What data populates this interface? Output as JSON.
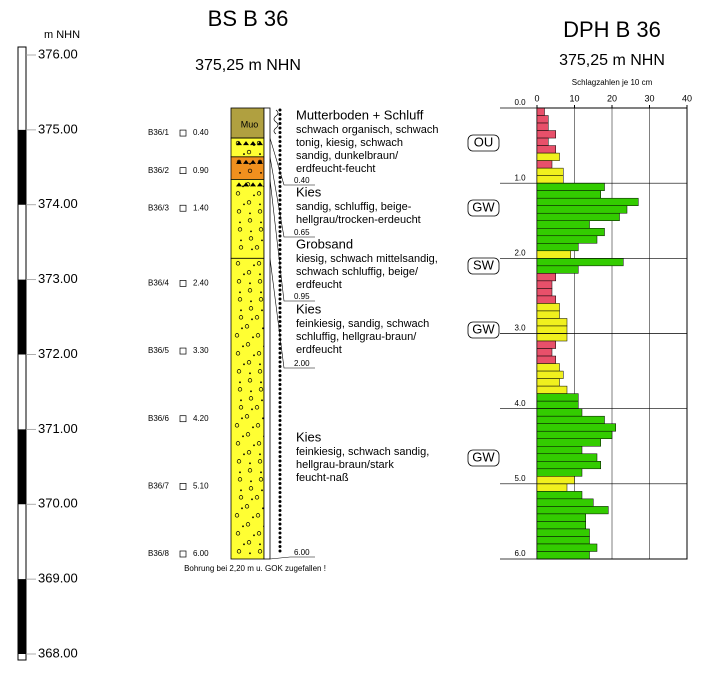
{
  "elevation_axis": {
    "label": "m NHN",
    "ylim": [
      368,
      376
    ],
    "yticks": [
      {
        "value": 376,
        "label": "376.00"
      },
      {
        "value": 375,
        "label": "375.00"
      },
      {
        "value": 374,
        "label": "374.00"
      },
      {
        "value": 373,
        "label": "373.00"
      },
      {
        "value": 372,
        "label": "372.00"
      },
      {
        "value": 371,
        "label": "371.00"
      },
      {
        "value": 370,
        "label": "370.00"
      },
      {
        "value": 369,
        "label": "369.00"
      },
      {
        "value": 368,
        "label": "368.00"
      }
    ]
  },
  "boring": {
    "title": "BS B 36",
    "subtitle": "375,25 m NHN",
    "note": "Bohrung bei 2,20 m u. GOK zugefallen !",
    "layers": [
      {
        "name": "Mutterboden + Schluff",
        "symbol": "Muo",
        "description": [
          "schwach organisch, schwach",
          "tonig, kiesig, schwach",
          "sandig, dunkelbraun/",
          "erdfeucht-feucht"
        ],
        "group": "OU",
        "color": "#b0a040",
        "bottom": {
          "value": 0.4,
          "label": "0.40"
        }
      },
      {
        "name": "Kies",
        "description": [
          "sandig, schluffig, beige-",
          "hellgrau/trocken-erdeucht"
        ],
        "group": "GW",
        "color": "#ffff33",
        "bottom": {
          "value": 0.65,
          "label": "0.65"
        }
      },
      {
        "name": "Grobsand",
        "description": [
          "kiesig, schwach mittelsandig,",
          "schwach schluffig, beige/",
          "erdfeucht"
        ],
        "group": "SW",
        "color": "#f0901e",
        "bottom": {
          "value": 0.95,
          "label": "0.95"
        }
      },
      {
        "name": "Kies",
        "description": [
          "feinkiesig, sandig, schwach",
          "schluffig, hellgrau-braun/",
          "erdfeucht"
        ],
        "group": "GW",
        "color": "#ffff33",
        "bottom": {
          "value": 2,
          "label": "2.00"
        }
      },
      {
        "name": "Kies",
        "description": [
          "feinkiesig, schwach sandig,",
          "hellgrau-braun/stark",
          "feucht-naß"
        ],
        "group": "GW",
        "color": "#ffff33",
        "bottom": {
          "value": 6,
          "label": "6.00"
        }
      }
    ],
    "samples": [
      {
        "name": "B36/1",
        "depth": {
          "value": 0.4,
          "label": "0.40"
        }
      },
      {
        "name": "B36/2",
        "depth": {
          "value": 0.9,
          "label": "0.90"
        }
      },
      {
        "name": "B36/3",
        "depth": {
          "value": 1.4,
          "label": "1.40"
        }
      },
      {
        "name": "B36/4",
        "depth": {
          "value": 2.4,
          "label": "2.40"
        }
      },
      {
        "name": "B36/5",
        "depth": {
          "value": 3.3,
          "label": "3.30"
        }
      },
      {
        "name": "B36/6",
        "depth": {
          "value": 4.2,
          "label": "4.20"
        }
      },
      {
        "name": "B36/7",
        "depth": {
          "value": 5.1,
          "label": "5.10"
        }
      },
      {
        "name": "B36/8",
        "depth": {
          "value": 6,
          "label": "6.00"
        }
      }
    ]
  },
  "chart_data": {
    "type": "bar",
    "orientation": "horizontal",
    "title": "DPH B 36",
    "subtitle": "375,25 m NHN",
    "x_label": "Schlagzahlen je 10 cm",
    "xlim": [
      0,
      40
    ],
    "xticks": [
      0,
      10,
      20,
      30,
      40
    ],
    "ylim": [
      0,
      6
    ],
    "yticks": [
      {
        "value": 0,
        "label": "0.0"
      },
      {
        "value": 1,
        "label": "1.0"
      },
      {
        "value": 2,
        "label": "2.0"
      },
      {
        "value": 3,
        "label": "3.0"
      },
      {
        "value": 4,
        "label": "4.0"
      },
      {
        "value": 5,
        "label": "5.0"
      },
      {
        "value": 6,
        "label": "6.0"
      }
    ],
    "values": [
      2,
      3,
      3,
      5,
      3,
      5,
      6,
      4,
      7,
      7,
      18,
      17,
      27,
      24,
      22,
      14,
      18,
      16,
      11,
      9,
      23,
      11,
      5,
      4,
      4,
      5,
      6,
      6,
      8,
      8,
      8,
      5,
      4,
      5,
      6,
      7,
      6,
      8,
      11,
      11,
      12,
      18,
      21,
      20,
      17,
      12,
      16,
      17,
      12,
      10,
      8,
      12,
      15,
      19,
      13,
      13,
      14,
      14,
      16,
      14
    ],
    "colors": [
      "#e8506a",
      "#e8506a",
      "#e8506a",
      "#e8506a",
      "#e8506a",
      "#e8506a",
      "#f0f01e",
      "#e8506a",
      "#f0f01e",
      "#f0f01e",
      "#33cc00",
      "#33cc00",
      "#33cc00",
      "#33cc00",
      "#33cc00",
      "#33cc00",
      "#33cc00",
      "#33cc00",
      "#33cc00",
      "#f0f01e",
      "#33cc00",
      "#33cc00",
      "#e8506a",
      "#e8506a",
      "#e8506a",
      "#e8506a",
      "#f0f01e",
      "#f0f01e",
      "#f0f01e",
      "#f0f01e",
      "#f0f01e",
      "#e8506a",
      "#e8506a",
      "#e8506a",
      "#f0f01e",
      "#f0f01e",
      "#f0f01e",
      "#f0f01e",
      "#33cc00",
      "#33cc00",
      "#33cc00",
      "#33cc00",
      "#33cc00",
      "#33cc00",
      "#33cc00",
      "#33cc00",
      "#33cc00",
      "#33cc00",
      "#33cc00",
      "#f0f01e",
      "#f0f01e",
      "#33cc00",
      "#33cc00",
      "#33cc00",
      "#33cc00",
      "#33cc00",
      "#33cc00",
      "#33cc00",
      "#33cc00",
      "#33cc00"
    ]
  }
}
